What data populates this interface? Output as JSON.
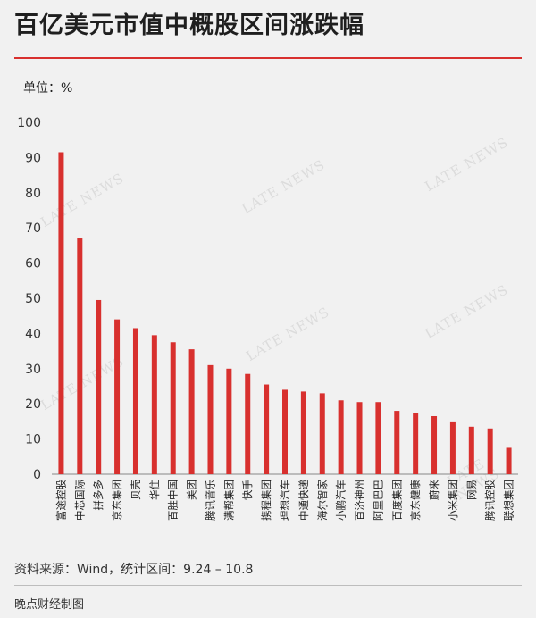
{
  "header": {
    "title": "百亿美元市值中概股区间涨跌幅",
    "unit_label": "单位：%"
  },
  "footer": {
    "source": "资料来源：Wind，统计区间：9.24 – 10.8",
    "credit": "晚点财经制图"
  },
  "watermark": "LATE NEWS",
  "colors": {
    "bar": "#d8302e",
    "accent": "#d8302e",
    "background": "#f1f1f1"
  },
  "chart_data": {
    "type": "bar",
    "title": "百亿美元市值中概股区间涨跌幅",
    "ylabel": "单位：%",
    "ylim": [
      0,
      100
    ],
    "yticks": [
      0,
      10,
      20,
      30,
      40,
      50,
      60,
      70,
      80,
      90,
      100
    ],
    "grid": false,
    "categories": [
      "富途控股",
      "中芯国际",
      "拼多多",
      "京东集团",
      "贝壳",
      "华住",
      "百胜中国",
      "美团",
      "腾讯音乐",
      "满帮集团",
      "快手",
      "携程集团",
      "理想汽车",
      "中通快递",
      "海尔智家",
      "小鹏汽车",
      "百济神州",
      "阿里巴巴",
      "百度集团",
      "京东健康",
      "蔚来",
      "小米集团",
      "网易",
      "腾讯控股",
      "联想集团"
    ],
    "values": [
      91.5,
      67,
      49.5,
      44,
      41.5,
      39.5,
      37.5,
      35.5,
      31,
      30,
      28.5,
      25.5,
      24,
      23.5,
      23,
      21,
      20.5,
      20.5,
      18,
      17.5,
      16.5,
      15,
      13.5,
      13,
      7.5
    ]
  }
}
